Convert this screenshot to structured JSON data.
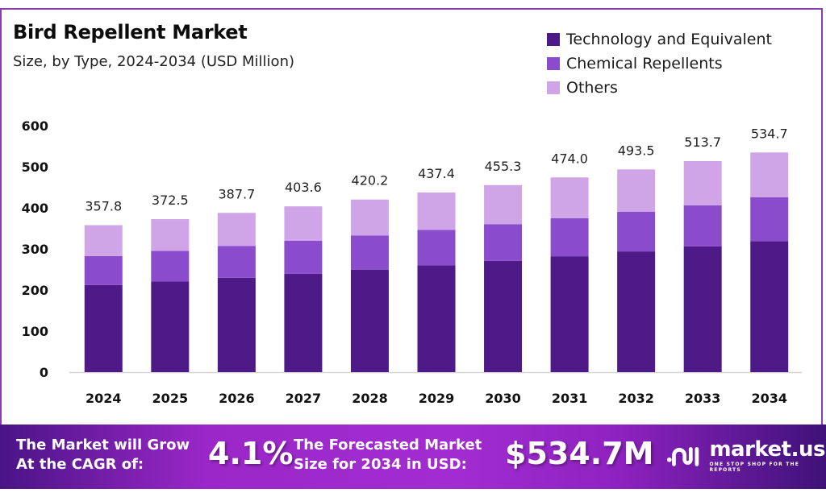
{
  "header": {
    "title": "Bird Repellent Market",
    "subtitle": "Size, by Type, 2024-2034 (USD Million)"
  },
  "legend": [
    {
      "label": "Technology and Equivalent",
      "color": "#4e1a87"
    },
    {
      "label": "Chemical Repellents",
      "color": "#8a4ccc"
    },
    {
      "label": "Others",
      "color": "#cfa5e8"
    }
  ],
  "chart_data": {
    "type": "bar",
    "stacked": true,
    "title": "Bird Repellent Market",
    "subtitle": "Size, by Type, 2024-2034 (USD Million)",
    "xlabel": "",
    "ylabel": "",
    "ylim": [
      0,
      600
    ],
    "yticks": [
      0,
      100,
      200,
      300,
      400,
      500,
      600
    ],
    "grid": false,
    "legend_position": "top-right",
    "categories": [
      "2024",
      "2025",
      "2026",
      "2027",
      "2028",
      "2029",
      "2030",
      "2031",
      "2032",
      "2033",
      "2034"
    ],
    "series": [
      {
        "name": "Technology and Equivalent",
        "color": "#4e1a87",
        "values": [
          212.0,
          220.5,
          229.9,
          239.5,
          249.6,
          260.0,
          270.8,
          282.1,
          293.9,
          306.2,
          318.5
        ]
      },
      {
        "name": "Chemical Repellents",
        "color": "#8a4ccc",
        "values": [
          70.5,
          74.5,
          77.4,
          80.2,
          83.2,
          86.3,
          89.5,
          92.8,
          96.3,
          99.9,
          107.5
        ]
      },
      {
        "name": "Others",
        "color": "#cfa5e8",
        "values": [
          75.3,
          77.5,
          80.4,
          83.9,
          87.4,
          91.1,
          95.0,
          99.1,
          103.3,
          107.6,
          108.7
        ]
      }
    ],
    "totals": [
      "357.8",
      "372.5",
      "387.7",
      "403.6",
      "420.2",
      "437.4",
      "455.3",
      "474.0",
      "493.5",
      "513.7",
      "534.7"
    ]
  },
  "banner": {
    "cagr_text_line1": "The Market will Grow",
    "cagr_text_line2": "At the CAGR of:",
    "cagr_value": "4.1%",
    "forecast_text_line1": "The Forecasted Market",
    "forecast_text_line2": "Size for 2034 in USD:",
    "forecast_value": "$534.7M",
    "logo_name": "market.us",
    "logo_tagline": "ONE STOP SHOP FOR THE REPORTS"
  }
}
